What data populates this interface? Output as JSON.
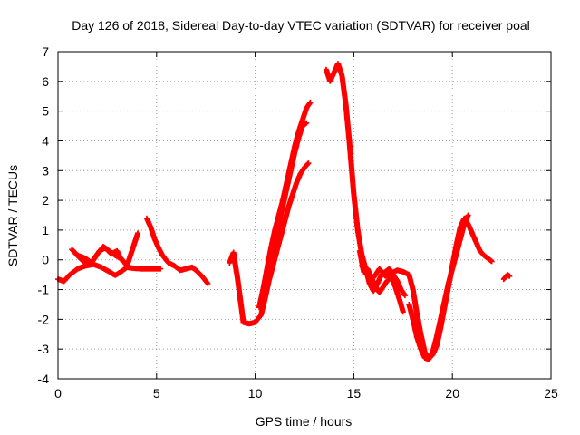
{
  "chart_data": {
    "type": "scatter",
    "title": "Day 126 of 2018, Sidereal Day-to-day VTEC variation (SDTVAR) for receiver poal",
    "xlabel": "GPS time / hours",
    "ylabel": "SDTVAR / TECUs",
    "xlim": [
      0,
      25
    ],
    "ylim": [
      -4,
      7
    ],
    "x_ticks": [
      0,
      5,
      10,
      15,
      20,
      25
    ],
    "y_ticks": [
      -4,
      -3,
      -2,
      -1,
      0,
      1,
      2,
      3,
      4,
      5,
      6,
      7
    ],
    "grid": true,
    "series": [
      {
        "name": "SDTVAR",
        "color": "#ff0000",
        "marker": "+",
        "segments": [
          [
            [
              0.0,
              -0.65
            ],
            [
              0.3,
              -0.72
            ],
            [
              0.6,
              -0.5
            ],
            [
              1.0,
              -0.3
            ],
            [
              1.4,
              -0.2
            ],
            [
              1.8,
              -0.15
            ],
            [
              2.2,
              -0.25
            ],
            [
              2.6,
              -0.4
            ],
            [
              2.9,
              -0.52
            ],
            [
              3.2,
              -0.4
            ],
            [
              3.5,
              -0.25
            ],
            [
              3.8,
              -0.28
            ],
            [
              4.2,
              -0.3
            ],
            [
              4.6,
              -0.3
            ],
            [
              5.0,
              -0.3
            ],
            [
              5.2,
              -0.3
            ]
          ],
          [
            [
              0.7,
              0.35
            ],
            [
              1.0,
              0.15
            ],
            [
              1.4,
              0.05
            ],
            [
              1.7,
              -0.1
            ],
            [
              2.0,
              0.2
            ],
            [
              2.3,
              0.45
            ],
            [
              2.6,
              0.3
            ],
            [
              2.9,
              0.15
            ],
            [
              3.2,
              0.05
            ],
            [
              3.5,
              -0.2
            ],
            [
              3.7,
              0.2
            ],
            [
              3.9,
              0.6
            ],
            [
              4.05,
              0.9
            ]
          ],
          [
            [
              0.9,
              0.2
            ],
            [
              1.2,
              0.0
            ],
            [
              1.5,
              -0.15
            ],
            [
              1.8,
              0.0
            ],
            [
              2.1,
              0.3
            ],
            [
              2.4,
              0.4
            ],
            [
              2.7,
              0.2
            ],
            [
              3.0,
              0.3
            ],
            [
              3.2,
              0.0
            ]
          ],
          [
            [
              4.5,
              1.4
            ],
            [
              4.7,
              1.1
            ],
            [
              4.9,
              0.7
            ],
            [
              5.1,
              0.4
            ],
            [
              5.3,
              0.15
            ],
            [
              5.6,
              -0.1
            ],
            [
              5.9,
              -0.2
            ],
            [
              6.2,
              -0.35
            ],
            [
              6.5,
              -0.3
            ],
            [
              6.8,
              -0.25
            ],
            [
              7.0,
              -0.35
            ],
            [
              7.3,
              -0.55
            ],
            [
              7.6,
              -0.8
            ]
          ],
          [
            [
              8.7,
              -0.1
            ],
            [
              8.9,
              0.25
            ],
            [
              9.0,
              -0.2
            ],
            [
              9.1,
              -0.6
            ],
            [
              9.2,
              -1.1
            ],
            [
              9.3,
              -1.6
            ],
            [
              9.4,
              -2.1
            ],
            [
              9.7,
              -2.15
            ],
            [
              10.0,
              -2.1
            ],
            [
              10.3,
              -1.85
            ],
            [
              10.5,
              -1.3
            ],
            [
              10.7,
              -0.7
            ],
            [
              10.9,
              -0.2
            ],
            [
              11.1,
              0.3
            ],
            [
              11.3,
              0.8
            ],
            [
              11.5,
              1.3
            ],
            [
              11.7,
              1.8
            ],
            [
              11.9,
              2.2
            ],
            [
              12.1,
              2.6
            ],
            [
              12.3,
              2.9
            ],
            [
              12.5,
              3.1
            ],
            [
              12.7,
              3.25
            ]
          ],
          [
            [
              10.2,
              -1.6
            ],
            [
              10.4,
              -1.0
            ],
            [
              10.6,
              -0.3
            ],
            [
              10.8,
              0.4
            ],
            [
              11.0,
              1.0
            ],
            [
              11.2,
              1.5
            ],
            [
              11.4,
              2.0
            ],
            [
              11.6,
              2.6
            ],
            [
              11.8,
              3.2
            ],
            [
              12.0,
              3.8
            ],
            [
              12.2,
              4.3
            ],
            [
              12.4,
              4.7
            ],
            [
              12.6,
              5.1
            ],
            [
              12.8,
              5.3
            ]
          ],
          [
            [
              10.4,
              -1.5
            ],
            [
              10.6,
              -0.7
            ],
            [
              10.8,
              0.0
            ],
            [
              11.0,
              0.6
            ],
            [
              11.2,
              1.2
            ],
            [
              11.4,
              1.8
            ],
            [
              11.6,
              2.4
            ],
            [
              11.8,
              3.0
            ],
            [
              12.0,
              3.6
            ],
            [
              12.2,
              4.1
            ],
            [
              12.4,
              4.5
            ],
            [
              12.6,
              4.6
            ]
          ],
          [
            [
              13.6,
              6.4
            ],
            [
              13.8,
              6.0
            ],
            [
              14.0,
              6.3
            ],
            [
              14.2,
              6.6
            ],
            [
              14.4,
              6.2
            ],
            [
              14.6,
              5.2
            ],
            [
              14.8,
              3.8
            ],
            [
              15.0,
              2.2
            ],
            [
              15.2,
              1.0
            ],
            [
              15.4,
              0.2
            ],
            [
              15.6,
              -0.3
            ],
            [
              15.8,
              -0.8
            ],
            [
              16.0,
              -1.05
            ],
            [
              16.2,
              -0.8
            ],
            [
              16.4,
              -0.5
            ],
            [
              16.6,
              -0.4
            ],
            [
              16.8,
              -0.3
            ],
            [
              17.0,
              -0.5
            ],
            [
              17.2,
              -0.7
            ],
            [
              17.4,
              -1.0
            ],
            [
              17.6,
              -1.2
            ]
          ],
          [
            [
              15.3,
              0.3
            ],
            [
              15.5,
              -0.4
            ],
            [
              15.7,
              -0.3
            ],
            [
              15.9,
              -0.6
            ],
            [
              16.1,
              -0.9
            ],
            [
              16.3,
              -1.1
            ],
            [
              16.5,
              -0.9
            ],
            [
              16.7,
              -0.7
            ],
            [
              16.9,
              -0.6
            ],
            [
              17.1,
              -0.9
            ],
            [
              17.3,
              -1.3
            ],
            [
              17.5,
              -1.75
            ]
          ],
          [
            [
              15.4,
              -0.2
            ],
            [
              15.7,
              -0.5
            ],
            [
              16.0,
              -0.6
            ],
            [
              16.3,
              -0.3
            ],
            [
              16.6,
              -0.55
            ],
            [
              16.9,
              -0.45
            ],
            [
              17.2,
              -0.35
            ],
            [
              17.5,
              -0.4
            ],
            [
              17.8,
              -0.5
            ],
            [
              18.0,
              -1.0
            ],
            [
              18.2,
              -1.8
            ],
            [
              18.4,
              -2.5
            ],
            [
              18.6,
              -3.1
            ],
            [
              18.8,
              -3.3
            ],
            [
              19.0,
              -3.2
            ],
            [
              19.2,
              -2.9
            ],
            [
              19.4,
              -2.3
            ],
            [
              19.6,
              -1.6
            ],
            [
              19.8,
              -0.9
            ],
            [
              20.0,
              -0.2
            ],
            [
              20.2,
              0.5
            ],
            [
              20.4,
              1.1
            ],
            [
              20.6,
              1.4
            ],
            [
              20.8,
              1.2
            ],
            [
              21.0,
              0.9
            ],
            [
              21.2,
              0.6
            ],
            [
              21.4,
              0.3
            ],
            [
              21.6,
              0.15
            ],
            [
              21.8,
              0.05
            ],
            [
              22.0,
              -0.05
            ]
          ],
          [
            [
              17.8,
              -1.5
            ],
            [
              18.0,
              -2.0
            ],
            [
              18.2,
              -2.6
            ],
            [
              18.4,
              -3.0
            ],
            [
              18.6,
              -3.3
            ],
            [
              18.8,
              -3.35
            ],
            [
              19.0,
              -3.1
            ],
            [
              19.2,
              -2.6
            ],
            [
              19.4,
              -2.0
            ],
            [
              19.6,
              -1.4
            ],
            [
              19.8,
              -0.8
            ],
            [
              20.0,
              -0.3
            ],
            [
              20.2,
              0.2
            ],
            [
              20.4,
              0.7
            ],
            [
              20.6,
              1.2
            ],
            [
              20.8,
              1.5
            ]
          ],
          [
            [
              22.6,
              -0.65
            ],
            [
              22.8,
              -0.5
            ],
            [
              22.9,
              -0.55
            ]
          ]
        ]
      }
    ]
  }
}
